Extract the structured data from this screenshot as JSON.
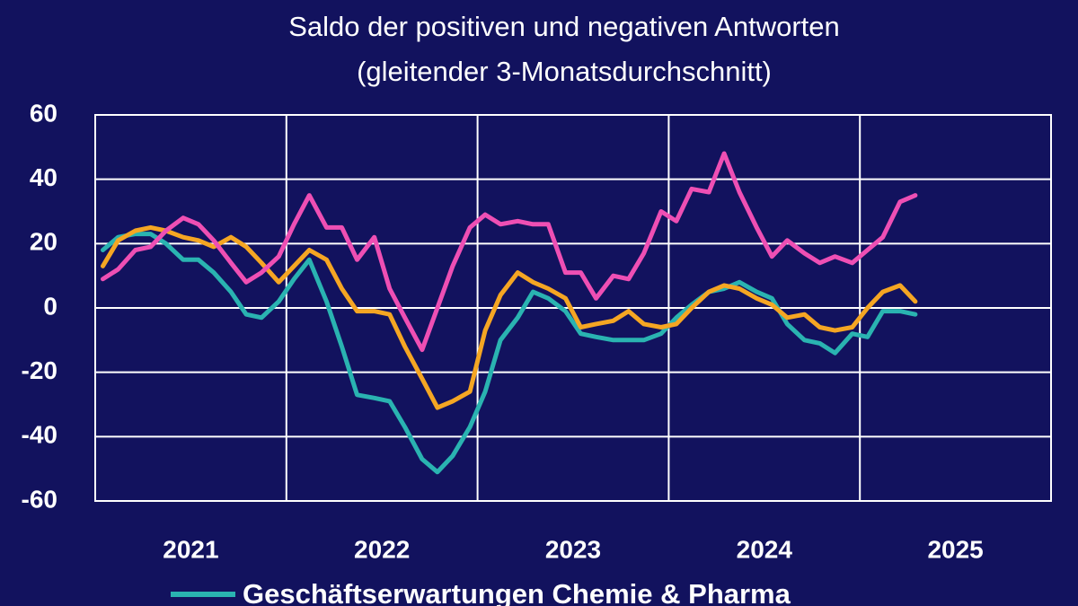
{
  "chart_data": {
    "type": "line",
    "title": "Saldo der positiven und negativen Antworten",
    "subtitle": "(gleitender 3-Monatsdurchschnitt)",
    "xlim": [
      2021,
      2026
    ],
    "xticks": [
      {
        "value": 2021.5,
        "label": "2021"
      },
      {
        "value": 2022.5,
        "label": "2022"
      },
      {
        "value": 2023.5,
        "label": "2023"
      },
      {
        "value": 2024.5,
        "label": "2024"
      },
      {
        "value": 2025.5,
        "label": "2025"
      }
    ],
    "xgrid": [
      2022,
      2023,
      2024,
      2025
    ],
    "ylim": [
      -60,
      60
    ],
    "yticks": [
      -60,
      -40,
      -20,
      0,
      20,
      40,
      60
    ],
    "grid": true,
    "legend": "bottom",
    "x": [
      2021.04,
      2021.12,
      2021.21,
      2021.29,
      2021.37,
      2021.46,
      2021.54,
      2021.62,
      2021.71,
      2021.79,
      2021.87,
      2021.96,
      2022.04,
      2022.12,
      2022.21,
      2022.29,
      2022.37,
      2022.46,
      2022.54,
      2022.62,
      2022.71,
      2022.79,
      2022.87,
      2022.96,
      2023.04,
      2023.12,
      2023.21,
      2023.29,
      2023.37,
      2023.46,
      2023.54,
      2023.62,
      2023.71,
      2023.79,
      2023.87,
      2023.96,
      2024.04,
      2024.12,
      2024.21,
      2024.29,
      2024.37,
      2024.46,
      2024.54,
      2024.62,
      2024.71,
      2024.79,
      2024.87,
      2024.96,
      2025.04,
      2025.12,
      2025.21,
      2025.29
    ],
    "series": [
      {
        "name": "Geschäftserwartungen Chemie & Pharma",
        "color": "#2ab3b1",
        "values": [
          18,
          22,
          23,
          23,
          20,
          15,
          15,
          11,
          5,
          -2,
          -3,
          2,
          9,
          15,
          2,
          -12,
          -27,
          -28,
          -29,
          -37,
          -47,
          -51,
          -46,
          -37,
          -26,
          -10,
          -3,
          5,
          3,
          -1,
          -8,
          -9,
          -10,
          -10,
          -10,
          -8,
          -3,
          1,
          5,
          6,
          8,
          5,
          3,
          -5,
          -10,
          -11,
          -14,
          -8,
          -9,
          -1,
          -1,
          -2
        ]
      },
      {
        "color": "#f5a623",
        "values": [
          13,
          21,
          24,
          25,
          24,
          22,
          21,
          19,
          22,
          19,
          14,
          8,
          13,
          18,
          15,
          6,
          -1,
          -1,
          -2,
          -12,
          -22,
          -31,
          -29,
          -26,
          -7,
          4,
          11,
          8,
          6,
          3,
          -6,
          -5,
          -4,
          -1,
          -5,
          -6,
          -5,
          0,
          5,
          7,
          6,
          3,
          1,
          -3,
          -2,
          -6,
          -7,
          -6,
          0,
          5,
          7,
          2
        ]
      },
      {
        "color": "#ee4fb4",
        "values": [
          9,
          12,
          18,
          19,
          24,
          28,
          26,
          21,
          14,
          8,
          11,
          16,
          26,
          35,
          25,
          25,
          15,
          22,
          6,
          -3,
          -13,
          0,
          13,
          25,
          29,
          26,
          27,
          26,
          26,
          11,
          11,
          3,
          10,
          9,
          17,
          30,
          27,
          37,
          36,
          48,
          36,
          25,
          16,
          21,
          17,
          14,
          16,
          14,
          18,
          22,
          33,
          35
        ]
      }
    ]
  }
}
